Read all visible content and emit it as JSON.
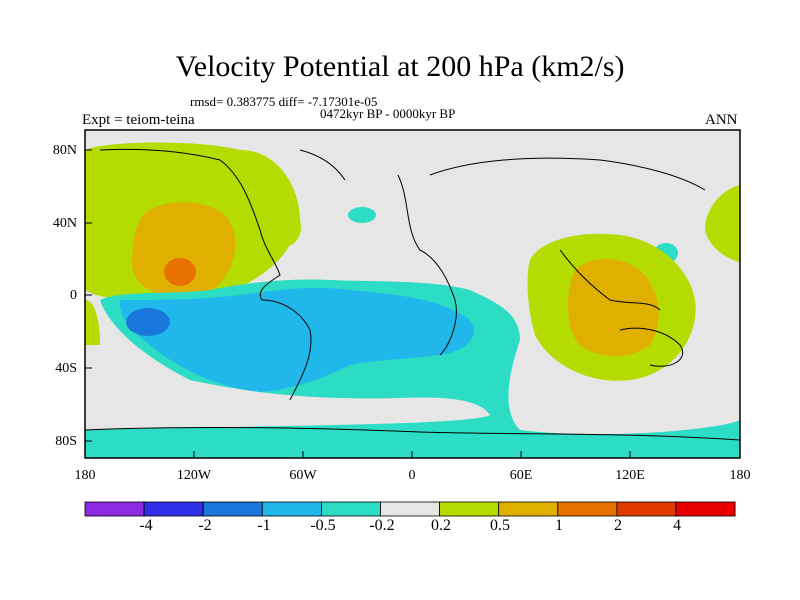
{
  "title": "Velocity Potential at 200 hPa (km2/s)",
  "stats": "rmsd= 0.383775  diff= -7.17301e-05",
  "period": "0472kyr BP - 0000kyr BP",
  "expt": "Expt = teiom-teina",
  "season": "ANN",
  "lat_ticks": [
    "80N",
    "40N",
    "0",
    "40S",
    "80S"
  ],
  "lon_ticks": [
    "180",
    "120W",
    "60W",
    "0",
    "60E",
    "120E",
    "180"
  ],
  "colorbar": {
    "labels": [
      "-4",
      "-2",
      "-1",
      "-0.5",
      "-0.2",
      "0.2",
      "0.5",
      "1",
      "2",
      "4"
    ],
    "colors": [
      "#8a2be2",
      "#2e2ee6",
      "#1a78dc",
      "#20b8ea",
      "#2ddcc4",
      "#e6e6e6",
      "#b4dc00",
      "#e0b000",
      "#e87000",
      "#e03a00",
      "#e80000"
    ]
  },
  "field_colors": {
    "neg_weak": "#2ddcc4",
    "neg_mid": "#20b8ea",
    "neg_strong": "#1a78dc",
    "neutral": "#e6e6e6",
    "pos_weak": "#b4dc00",
    "pos_mid": "#e0b000",
    "pos_strong": "#e87000"
  }
}
